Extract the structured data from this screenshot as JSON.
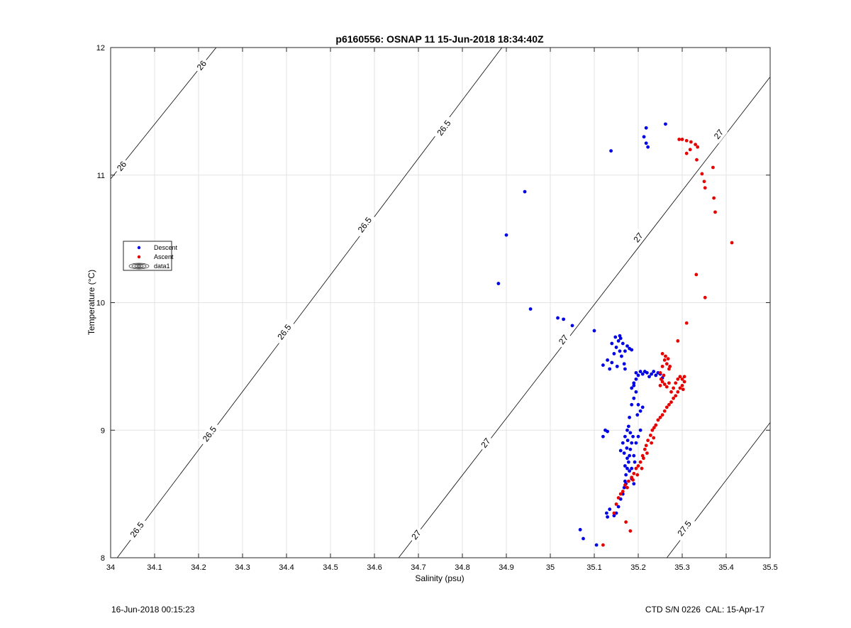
{
  "chart_data": {
    "type": "scatter",
    "title": "p6160556: OSNAP 11 15-Jun-2018 18:34:40Z",
    "xlabel": "Salinity (psu)",
    "ylabel": "Temperature (°C)",
    "xlim": [
      34,
      35.5
    ],
    "ylim": [
      8,
      12
    ],
    "xticks": [
      "34",
      "34.1",
      "34.2",
      "34.3",
      "34.4",
      "34.5",
      "34.6",
      "34.7",
      "34.8",
      "34.9",
      "35",
      "35.1",
      "35.2",
      "35.3",
      "35.4",
      "35.5"
    ],
    "yticks": [
      "8",
      "9",
      "10",
      "11",
      "12"
    ],
    "grid": true,
    "legend": {
      "placement": "left",
      "entries": [
        "Descent",
        "Ascent",
        "data1"
      ]
    },
    "contours": [
      {
        "label": "26",
        "points": [
          [
            34.0,
            10.97
          ],
          [
            34.24,
            12.0
          ]
        ],
        "label_positions": [
          [
            34.025,
            11.07
          ],
          [
            34.207,
            11.86
          ]
        ]
      },
      {
        "label": "26.5",
        "points": [
          [
            34.015,
            8.0
          ],
          [
            34.89,
            12.0
          ]
        ],
        "label_positions": [
          [
            34.06,
            8.22
          ],
          [
            34.225,
            8.97
          ],
          [
            34.395,
            9.77
          ],
          [
            34.578,
            10.61
          ],
          [
            34.758,
            11.37
          ]
        ]
      },
      {
        "label": "27",
        "points": [
          [
            34.655,
            8.0
          ],
          [
            35.5,
            11.77
          ]
        ],
        "label_positions": [
          [
            34.695,
            8.18
          ],
          [
            34.853,
            8.9
          ],
          [
            35.03,
            9.71
          ],
          [
            35.2,
            10.51
          ],
          [
            35.383,
            11.32
          ]
        ]
      },
      {
        "label": "27.5",
        "points": [
          [
            35.265,
            8.0
          ],
          [
            35.5,
            9.06
          ]
        ],
        "label_positions": [
          [
            35.305,
            8.23
          ]
        ]
      }
    ],
    "series": [
      {
        "name": "Descent",
        "color": "#0000e6",
        "points": [
          [
            34.882,
            10.15
          ],
          [
            34.9,
            10.53
          ],
          [
            34.942,
            10.87
          ],
          [
            34.955,
            9.95
          ],
          [
            35.017,
            9.88
          ],
          [
            35.03,
            9.87
          ],
          [
            35.05,
            9.82
          ],
          [
            35.1,
            9.78
          ],
          [
            35.138,
            11.19
          ],
          [
            35.213,
            11.3
          ],
          [
            35.218,
            11.25
          ],
          [
            35.222,
            11.22
          ],
          [
            35.218,
            11.37
          ],
          [
            35.262,
            11.4
          ],
          [
            35.068,
            8.22
          ],
          [
            35.075,
            8.15
          ],
          [
            35.105,
            8.1
          ],
          [
            35.12,
            8.95
          ],
          [
            35.125,
            9.0
          ],
          [
            35.13,
            8.99
          ],
          [
            35.13,
            8.32
          ],
          [
            35.128,
            8.35
          ],
          [
            35.135,
            8.38
          ],
          [
            35.145,
            8.33
          ],
          [
            35.15,
            8.35
          ],
          [
            35.155,
            8.4
          ],
          [
            35.16,
            8.46
          ],
          [
            35.165,
            8.5
          ],
          [
            35.168,
            8.55
          ],
          [
            35.17,
            8.6
          ],
          [
            35.172,
            8.65
          ],
          [
            35.175,
            8.7
          ],
          [
            35.178,
            8.75
          ],
          [
            35.18,
            8.8
          ],
          [
            35.182,
            8.85
          ],
          [
            35.185,
            8.9
          ],
          [
            35.188,
            8.95
          ],
          [
            35.17,
            8.72
          ],
          [
            35.175,
            8.78
          ],
          [
            35.18,
            8.68
          ],
          [
            35.185,
            8.62
          ],
          [
            35.19,
            8.58
          ],
          [
            35.165,
            8.9
          ],
          [
            35.17,
            8.95
          ],
          [
            35.175,
            9.0
          ],
          [
            35.178,
            9.03
          ],
          [
            35.182,
            8.98
          ],
          [
            35.19,
            8.8
          ],
          [
            35.192,
            8.75
          ],
          [
            35.195,
            8.9
          ],
          [
            35.2,
            8.95
          ],
          [
            35.205,
            9.0
          ],
          [
            35.16,
            8.84
          ],
          [
            35.168,
            8.82
          ],
          [
            35.174,
            8.86
          ],
          [
            35.185,
            8.7
          ],
          [
            35.176,
            8.92
          ],
          [
            35.172,
            8.58
          ],
          [
            35.18,
            9.1
          ],
          [
            35.185,
            9.2
          ],
          [
            35.19,
            9.25
          ],
          [
            35.195,
            9.3
          ],
          [
            35.2,
            9.2
          ],
          [
            35.205,
            9.15
          ],
          [
            35.21,
            9.18
          ],
          [
            35.198,
            9.12
          ],
          [
            35.19,
            9.35
          ],
          [
            35.185,
            9.33
          ],
          [
            35.195,
            9.45
          ],
          [
            35.2,
            9.43
          ],
          [
            35.205,
            9.46
          ],
          [
            35.21,
            9.44
          ],
          [
            35.215,
            9.46
          ],
          [
            35.22,
            9.45
          ],
          [
            35.225,
            9.42
          ],
          [
            35.23,
            9.44
          ],
          [
            35.235,
            9.46
          ],
          [
            35.24,
            9.43
          ],
          [
            35.245,
            9.45
          ],
          [
            35.25,
            9.44
          ],
          [
            35.255,
            9.41
          ],
          [
            35.195,
            9.4
          ],
          [
            35.19,
            9.37
          ],
          [
            35.12,
            9.51
          ],
          [
            35.13,
            9.55
          ],
          [
            35.135,
            9.48
          ],
          [
            35.14,
            9.53
          ],
          [
            35.145,
            9.6
          ],
          [
            35.15,
            9.65
          ],
          [
            35.155,
            9.7
          ],
          [
            35.16,
            9.72
          ],
          [
            35.165,
            9.68
          ],
          [
            35.17,
            9.62
          ],
          [
            35.175,
            9.66
          ],
          [
            35.18,
            9.64
          ],
          [
            35.185,
            9.63
          ],
          [
            35.158,
            9.74
          ],
          [
            35.148,
            9.73
          ],
          [
            35.14,
            9.68
          ],
          [
            35.152,
            9.5
          ],
          [
            35.162,
            9.58
          ],
          [
            35.168,
            9.52
          ],
          [
            35.158,
            9.62
          ],
          [
            35.17,
            9.48
          ]
        ]
      },
      {
        "name": "Ascent",
        "color": "#e60000",
        "points": [
          [
            35.293,
            11.28
          ],
          [
            35.3,
            11.28
          ],
          [
            35.31,
            11.27
          ],
          [
            35.32,
            11.26
          ],
          [
            35.33,
            11.24
          ],
          [
            35.335,
            11.22
          ],
          [
            35.31,
            11.17
          ],
          [
            35.318,
            11.2
          ],
          [
            35.333,
            11.12
          ],
          [
            35.345,
            11.01
          ],
          [
            35.35,
            10.95
          ],
          [
            35.352,
            10.9
          ],
          [
            35.37,
            11.06
          ],
          [
            35.372,
            10.82
          ],
          [
            35.375,
            10.71
          ],
          [
            35.413,
            10.47
          ],
          [
            35.332,
            10.22
          ],
          [
            35.352,
            10.04
          ],
          [
            35.31,
            9.84
          ],
          [
            35.29,
            9.7
          ],
          [
            35.12,
            8.1
          ],
          [
            35.182,
            8.21
          ],
          [
            35.172,
            8.28
          ],
          [
            35.145,
            8.35
          ],
          [
            35.15,
            8.42
          ],
          [
            35.155,
            8.47
          ],
          [
            35.165,
            8.52
          ],
          [
            35.17,
            8.57
          ],
          [
            35.178,
            8.6
          ],
          [
            35.185,
            8.63
          ],
          [
            35.19,
            8.66
          ],
          [
            35.195,
            8.7
          ],
          [
            35.2,
            8.72
          ],
          [
            35.205,
            8.75
          ],
          [
            35.21,
            8.8
          ],
          [
            35.215,
            8.85
          ],
          [
            35.218,
            8.88
          ],
          [
            35.222,
            8.92
          ],
          [
            35.228,
            8.96
          ],
          [
            35.232,
            9.0
          ],
          [
            35.236,
            9.02
          ],
          [
            35.24,
            9.04
          ],
          [
            35.245,
            9.08
          ],
          [
            35.25,
            9.1
          ],
          [
            35.255,
            9.12
          ],
          [
            35.26,
            9.15
          ],
          [
            35.265,
            9.18
          ],
          [
            35.27,
            9.2
          ],
          [
            35.275,
            9.22
          ],
          [
            35.28,
            9.25
          ],
          [
            35.285,
            9.27
          ],
          [
            35.29,
            9.3
          ],
          [
            35.295,
            9.33
          ],
          [
            35.3,
            9.35
          ],
          [
            35.305,
            9.38
          ],
          [
            35.3,
            9.4
          ],
          [
            35.295,
            9.42
          ],
          [
            35.29,
            9.4
          ],
          [
            35.285,
            9.37
          ],
          [
            35.28,
            9.33
          ],
          [
            35.275,
            9.3
          ],
          [
            35.305,
            9.42
          ],
          [
            35.302,
            9.32
          ],
          [
            35.198,
            8.65
          ],
          [
            35.208,
            8.7
          ],
          [
            35.212,
            8.78
          ],
          [
            35.22,
            8.82
          ],
          [
            35.23,
            8.9
          ],
          [
            35.235,
            8.94
          ],
          [
            35.188,
            8.61
          ],
          [
            35.16,
            8.5
          ],
          [
            35.175,
            8.55
          ],
          [
            35.25,
            9.35
          ],
          [
            35.255,
            9.38
          ],
          [
            35.26,
            9.36
          ],
          [
            35.265,
            9.34
          ],
          [
            35.27,
            9.37
          ],
          [
            35.252,
            9.4
          ],
          [
            35.258,
            9.43
          ],
          [
            35.25,
            9.45
          ],
          [
            35.255,
            9.5
          ],
          [
            35.26,
            9.55
          ],
          [
            35.265,
            9.52
          ],
          [
            35.27,
            9.48
          ],
          [
            35.262,
            9.58
          ],
          [
            35.255,
            9.6
          ],
          [
            35.268,
            9.56
          ],
          [
            35.272,
            9.5
          ]
        ]
      }
    ]
  },
  "footer": {
    "left": "16-Jun-2018 00:15:23",
    "right_sn": "CTD S/N 0226",
    "right_cal": "CAL: 15-Apr-17"
  }
}
